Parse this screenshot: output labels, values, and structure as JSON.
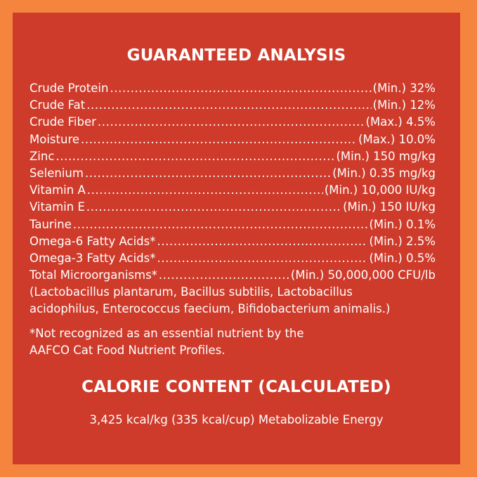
{
  "title": "GUARANTEED ANALYSIS",
  "analysis": [
    {
      "label": "Crude Protein",
      "value": "(Min.) 32%"
    },
    {
      "label": "Crude Fat",
      "value": "(Min.) 12%"
    },
    {
      "label": "Crude Fiber",
      "value": "(Max.) 4.5%"
    },
    {
      "label": "Moisture",
      "value": "(Max.) 10.0%"
    },
    {
      "label": "Zinc",
      "value": "(Min.) 150 mg/kg"
    },
    {
      "label": "Selenium",
      "value": "(Min.) 0.35 mg/kg"
    },
    {
      "label": "Vitamin A",
      "value": "(Min.) 10,000 IU/kg"
    },
    {
      "label": "Vitamin E",
      "value": "(Min.) 150 IU/kg"
    },
    {
      "label": "Taurine",
      "value": "(Min.) 0.1%"
    },
    {
      "label": "Omega-6 Fatty Acids*",
      "value": "(Min.) 2.5%"
    },
    {
      "label": "Omega-3 Fatty Acids*",
      "value": "(Min.) 0.5%"
    },
    {
      "label": "Total Microorganisms*",
      "value": "(Min.) 50,000,000 CFU/lb"
    }
  ],
  "microorganisms_note": [
    "(Lactobacillus plantarum, Bacillus subtilis, Lactobacillus",
    "acidophilus, Enterococcus faecium, Bifidobacterium animalis.)"
  ],
  "footnote": [
    "*Not recognized as an essential nutrient by the",
    "AAFCO Cat Food Nutrient Profiles."
  ],
  "calorie_title": "CALORIE CONTENT (CALCULATED)",
  "calorie_value": "3,425 kcal/kg (335 kcal/cup) Metabolizable Energy",
  "colors": {
    "border": "#f5843f",
    "panel": "#cf3b2b",
    "text": "#ffffff"
  }
}
